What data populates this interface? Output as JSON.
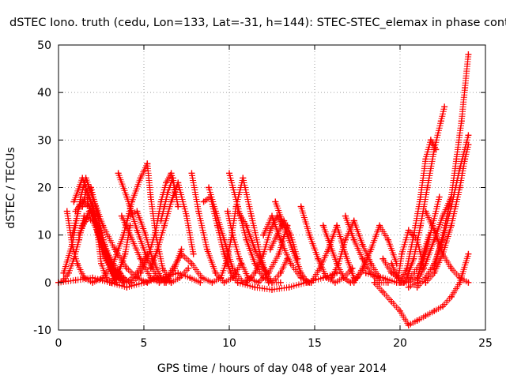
{
  "chart_data": {
    "type": "scatter",
    "title": "dSTEC Iono. truth (cedu, Lon=133, Lat=-31, h=144): STEC-STEC_elemax in phase cont",
    "xlabel": "GPS time / hours of day 048 of year 2014",
    "ylabel": "dSTEC  / TECUs",
    "xlim": [
      0,
      25
    ],
    "ylim": [
      -10,
      50
    ],
    "xticks": [
      "0",
      "5",
      "10",
      "15",
      "20",
      "25"
    ],
    "yticks": [
      "-10",
      "0",
      "10",
      "20",
      "30",
      "40",
      "50"
    ],
    "grid": true,
    "marker": "+",
    "series_color": "#ff0000",
    "series": [
      {
        "x": [
          0.0,
          0.3,
          0.6,
          0.9,
          1.2,
          1.5,
          2.0,
          2.6,
          3.2,
          3.8,
          4.2
        ],
        "y": [
          0,
          0.5,
          2,
          5,
          9,
          14,
          13,
          8,
          4,
          1,
          0
        ]
      },
      {
        "x": [
          0.5,
          0.8,
          1.1,
          1.5,
          2.0,
          2.6,
          3.2,
          3.8,
          4.3,
          4.8,
          5.2
        ],
        "y": [
          15,
          8,
          4,
          1,
          0,
          1,
          4,
          10,
          17,
          22,
          25
        ]
      },
      {
        "x": [
          0.3,
          0.8,
          1.3,
          1.6,
          2.0,
          2.6,
          3.3,
          4.0,
          4.6,
          5.2,
          5.6
        ],
        "y": [
          2,
          8,
          18,
          22,
          18,
          12,
          7,
          3,
          1,
          0,
          1
        ]
      },
      {
        "x": [
          0.8,
          1.3,
          1.8,
          2.3,
          2.8,
          3.3
        ],
        "y": [
          10,
          17,
          18,
          12,
          5,
          0
        ]
      },
      {
        "x": [
          1.4,
          1.6,
          1.9,
          2.3,
          2.8,
          3.4,
          4.0,
          4.6,
          5.2
        ],
        "y": [
          16,
          19,
          20,
          14,
          6,
          1,
          0,
          2,
          6
        ]
      },
      {
        "x": [
          1.0,
          1.4,
          1.8,
          2.2,
          2.6,
          3.1,
          3.6
        ],
        "y": [
          15,
          17,
          16,
          12,
          6,
          3,
          2
        ]
      },
      {
        "x": [
          1.2,
          1.8,
          2.3,
          2.7,
          3.2,
          3.8
        ],
        "y": [
          10,
          15,
          14,
          8,
          3,
          0
        ]
      },
      {
        "x": [
          1.4,
          2.0,
          2.6,
          3.1,
          3.4
        ],
        "y": [
          12,
          15,
          9,
          3,
          0
        ]
      },
      {
        "x": [
          0.9,
          1.4,
          1.9,
          2.3,
          2.8,
          3.3,
          3.8
        ],
        "y": [
          17,
          22,
          17,
          11,
          5,
          2,
          1
        ]
      },
      {
        "x": [
          1.7,
          2.2,
          2.7,
          3.2,
          3.8
        ],
        "y": [
          17,
          12,
          6,
          2,
          0
        ]
      },
      {
        "x": [
          2.0,
          2.3,
          2.5,
          2.8,
          3.1,
          3.5,
          3.9,
          4.2
        ],
        "y": [
          17,
          10,
          4,
          1,
          0,
          2,
          6,
          12
        ]
      },
      {
        "x": [
          0.0,
          1.0,
          2.0,
          3.0,
          4.0,
          5.0,
          6.0,
          7.0,
          7.7,
          8.3
        ],
        "y": [
          0,
          0.5,
          1,
          0,
          -1,
          0,
          1,
          2,
          1,
          0
        ]
      },
      {
        "x": [
          3.5,
          4.0,
          4.6,
          5.2,
          5.8,
          6.3,
          6.8,
          7.2
        ],
        "y": [
          23,
          18,
          11,
          5,
          1,
          0,
          3,
          7
        ]
      },
      {
        "x": [
          3.7,
          4.2,
          4.8,
          5.4,
          5.9,
          6.3
        ],
        "y": [
          14,
          10,
          5,
          1,
          0,
          1
        ]
      },
      {
        "x": [
          4.1,
          4.6,
          5.1,
          5.5,
          6.0,
          6.6
        ],
        "y": [
          14,
          15,
          10,
          5,
          1,
          0
        ]
      },
      {
        "x": [
          4.3,
          4.8,
          5.3,
          5.7,
          6.0,
          6.3,
          6.6,
          6.9
        ],
        "y": [
          0,
          2,
          6,
          11,
          17,
          21,
          23,
          18
        ]
      },
      {
        "x": [
          5.2,
          5.4,
          5.7,
          6.1,
          6.6,
          7.1,
          7.6
        ],
        "y": [
          25,
          18,
          10,
          3,
          0,
          1,
          3
        ]
      },
      {
        "x": [
          5.4,
          5.8,
          6.2,
          6.6,
          7.0,
          7.5,
          7.9
        ],
        "y": [
          3,
          7,
          12,
          17,
          21,
          14,
          6
        ]
      },
      {
        "x": [
          6.0,
          6.2,
          6.4,
          6.7,
          7.0
        ],
        "y": [
          13,
          16,
          19,
          22,
          16
        ]
      },
      {
        "x": [
          6.2,
          6.7,
          7.2,
          7.8,
          8.4,
          9.0,
          9.5
        ],
        "y": [
          0,
          3,
          6,
          4,
          1,
          0,
          1
        ]
      },
      {
        "x": [
          7.8,
          8.2,
          8.7,
          9.2,
          9.7,
          10.2,
          10.7
        ],
        "y": [
          23,
          15,
          7,
          2,
          0,
          1,
          4
        ]
      },
      {
        "x": [
          8.5,
          8.9,
          9.3,
          9.7,
          10.1,
          10.5
        ],
        "y": [
          17,
          18,
          12,
          6,
          2,
          0
        ]
      },
      {
        "x": [
          8.8,
          9.2,
          9.7,
          10.2,
          10.8,
          11.3
        ],
        "y": [
          20,
          15,
          9,
          3,
          0,
          1
        ]
      },
      {
        "x": [
          9.5,
          9.8,
          10.1,
          10.4,
          10.8,
          11.3,
          11.8,
          12.3
        ],
        "y": [
          1,
          4,
          9,
          16,
          22,
          14,
          6,
          0
        ]
      },
      {
        "x": [
          9.9,
          10.2,
          10.6,
          11.1,
          11.7,
          12.3,
          12.9,
          13.4
        ],
        "y": [
          15,
          10,
          5,
          1,
          0,
          2,
          6,
          12
        ]
      },
      {
        "x": [
          10.0,
          10.5,
          11.0,
          11.5,
          12.0,
          12.5,
          13.0,
          13.4
        ],
        "y": [
          23,
          16,
          9,
          4,
          1,
          0,
          2,
          5
        ]
      },
      {
        "x": [
          10.5,
          11.0,
          11.5,
          12.0,
          12.5,
          13.0
        ],
        "y": [
          15,
          12,
          7,
          3,
          0,
          0
        ]
      },
      {
        "x": [
          11.0,
          11.5,
          12.0,
          12.4,
          12.8,
          13.1
        ],
        "y": [
          0,
          2,
          6,
          11,
          14,
          12
        ]
      },
      {
        "x": [
          12.0,
          12.5,
          13.0,
          13.6,
          14.2,
          14.7
        ],
        "y": [
          10,
          14,
          9,
          4,
          1,
          0
        ]
      },
      {
        "x": [
          12.4,
          12.8,
          13.2,
          13.6,
          14.0
        ],
        "y": [
          7,
          10,
          13,
          10,
          5
        ]
      },
      {
        "x": [
          12.7,
          13.2,
          13.7,
          14.2,
          14.6
        ],
        "y": [
          17,
          12,
          7,
          2,
          0
        ]
      },
      {
        "x": [
          10.5,
          11.5,
          12.5,
          13.5,
          14.5,
          15.5,
          16.3
        ],
        "y": [
          0,
          -1,
          -1.5,
          -1,
          0,
          1,
          2
        ]
      },
      {
        "x": [
          14.2,
          14.7,
          15.2,
          15.7,
          16.2,
          16.7,
          17.2
        ],
        "y": [
          16,
          10,
          5,
          1,
          0,
          1,
          3
        ]
      },
      {
        "x": [
          14.8,
          15.3,
          15.8,
          16.3,
          16.8,
          17.3
        ],
        "y": [
          0,
          3,
          7,
          12,
          6,
          1
        ]
      },
      {
        "x": [
          15.5,
          15.9,
          16.3,
          16.7,
          17.1,
          17.5,
          17.9
        ],
        "y": [
          12,
          8,
          4,
          1,
          0,
          1,
          3
        ]
      },
      {
        "x": [
          16.0,
          16.4,
          16.8,
          17.3,
          17.8,
          18.3,
          18.8
        ],
        "y": [
          1,
          4,
          9,
          13,
          8,
          4,
          1
        ]
      },
      {
        "x": [
          16.8,
          17.3,
          17.8,
          18.3,
          18.8,
          19.3
        ],
        "y": [
          14,
          9,
          5,
          2,
          0,
          0
        ]
      },
      {
        "x": [
          17.3,
          17.8,
          18.3,
          18.8,
          19.3,
          19.8
        ],
        "y": [
          0,
          3,
          7,
          12,
          9,
          4
        ]
      },
      {
        "x": [
          18.5,
          19.0,
          19.5,
          20.0,
          20.5,
          21.0
        ],
        "y": [
          0,
          -2,
          -4,
          -6,
          -9,
          -8
        ]
      },
      {
        "x": [
          19.0,
          19.5,
          19.9,
          20.1,
          20.5,
          21.0,
          21.4
        ],
        "y": [
          5,
          2,
          1,
          6,
          11,
          9,
          3
        ]
      },
      {
        "x": [
          18.0,
          19.0,
          19.8,
          20.2,
          20.6,
          21.2,
          21.7
        ],
        "y": [
          2,
          1,
          0,
          0,
          1,
          4,
          10
        ]
      },
      {
        "x": [
          19.5,
          20.0,
          20.5,
          21.0,
          21.4,
          21.9,
          22.3
        ],
        "y": [
          4,
          0,
          0,
          1,
          5,
          12,
          18
        ]
      },
      {
        "x": [
          20.0,
          20.4,
          20.8,
          21.2,
          21.5,
          21.8,
          22.1
        ],
        "y": [
          0,
          3,
          10,
          18,
          26,
          30,
          28
        ]
      },
      {
        "x": [
          20.4,
          20.8,
          21.2,
          21.6,
          22.0,
          22.4,
          22.6
        ],
        "y": [
          1,
          5,
          12,
          20,
          28,
          34,
          37
        ]
      },
      {
        "x": [
          20.5,
          21.0,
          21.5,
          22.0,
          22.5,
          23.0
        ],
        "y": [
          -1,
          0,
          4,
          9,
          14,
          18
        ]
      },
      {
        "x": [
          21.0,
          21.5,
          22.0,
          22.5,
          23.0,
          23.5,
          24.0
        ],
        "y": [
          -8,
          -7,
          -6,
          -5,
          -3,
          0,
          6
        ]
      },
      {
        "x": [
          21.5,
          22.0,
          22.5,
          23.0,
          23.5,
          24.0
        ],
        "y": [
          15,
          11,
          6,
          3,
          1,
          0
        ]
      },
      {
        "x": [
          21.0,
          21.5,
          22.0,
          22.5,
          23.0,
          23.5,
          24.0
        ],
        "y": [
          -1,
          1,
          4,
          9,
          16,
          24,
          31
        ]
      },
      {
        "x": [
          21.5,
          22.0,
          22.5,
          23.0,
          23.5,
          23.8,
          24.0
        ],
        "y": [
          0,
          2,
          6,
          12,
          20,
          26,
          29
        ]
      },
      {
        "x": [
          22.0,
          22.5,
          23.0,
          23.3,
          23.6,
          23.8,
          24.0
        ],
        "y": [
          3,
          10,
          18,
          26,
          34,
          41,
          48
        ]
      }
    ]
  }
}
